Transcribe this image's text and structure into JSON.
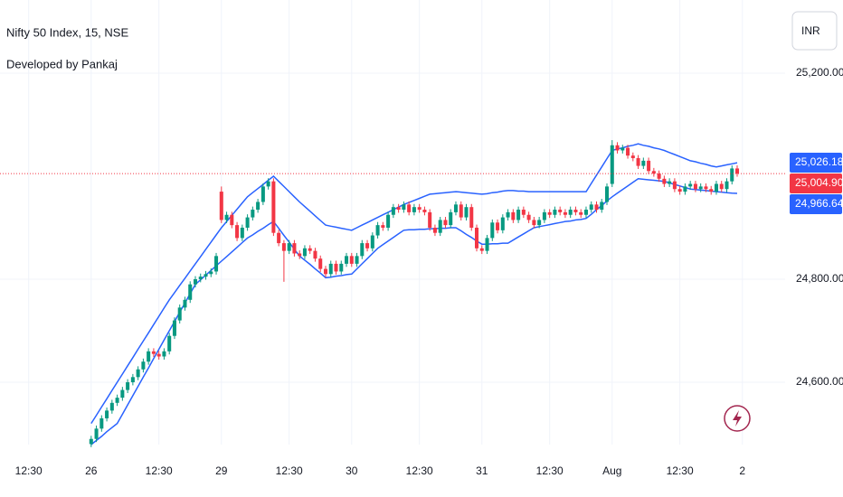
{
  "chart_data": {
    "type": "candlestick",
    "title": "Nifty 50 Index, 15, NSE",
    "subtitle": "Developed by Pankaj",
    "currency": "INR",
    "up_color": "#089981",
    "down_color": "#f23645",
    "xlim": [
      -17.5,
      133.2
    ],
    "ylim": [
      24479,
      25342
    ],
    "xticks": [
      {
        "value": -12,
        "label": "12:30"
      },
      {
        "value": 0,
        "label": "26"
      },
      {
        "value": 13,
        "label": "12:30"
      },
      {
        "value": 25,
        "label": "29"
      },
      {
        "value": 38,
        "label": "12:30"
      },
      {
        "value": 50,
        "label": "30"
      },
      {
        "value": 63,
        "label": "12:30"
      },
      {
        "value": 75,
        "label": "31"
      },
      {
        "value": 88,
        "label": "12:30"
      },
      {
        "value": 100,
        "label": "Aug"
      },
      {
        "value": 113,
        "label": "12:30"
      },
      {
        "value": 125,
        "label": "2"
      }
    ],
    "yticks": [
      {
        "value": 24600,
        "label": "24,600.00"
      },
      {
        "value": 24800,
        "label": "24,800.00"
      },
      {
        "value": 25200,
        "label": "25,200.00"
      }
    ],
    "grid": true,
    "open": [
      24480,
      24490,
      24510,
      24530,
      24545,
      24560,
      24570,
      24585,
      24600,
      24610,
      24625,
      24640,
      24660,
      24655,
      24650,
      24660,
      24690,
      24720,
      24745,
      24760,
      24790,
      24800,
      24805,
      24810,
      24815,
      24970,
      24915,
      24925,
      24905,
      24880,
      24900,
      24920,
      24935,
      24950,
      24980,
      24990,
      24890,
      24870,
      24855,
      24870,
      24850,
      24845,
      24860,
      24855,
      24840,
      24820,
      24810,
      24830,
      24815,
      24830,
      24845,
      24830,
      24845,
      24870,
      24860,
      24885,
      24905,
      24900,
      24925,
      24940,
      24935,
      24945,
      24930,
      24940,
      24935,
      24930,
      24900,
      24890,
      24915,
      24905,
      24930,
      24945,
      24920,
      24940,
      24900,
      24860,
      24855,
      24880,
      24910,
      24895,
      24920,
      24930,
      24915,
      24935,
      24925,
      24915,
      24905,
      24915,
      24930,
      24925,
      24935,
      24930,
      24925,
      24935,
      24930,
      24925,
      24935,
      24945,
      24935,
      24950,
      24985,
      25060,
      25050,
      25055,
      25040,
      25035,
      25020,
      25030,
      25010,
      25005,
      24995,
      24985,
      24990,
      24975,
      24970,
      24980,
      24985,
      24975,
      24980,
      24975,
      24970,
      24985,
      24975,
      24990,
      25015
    ],
    "high": [
      24496,
      24516,
      24536,
      24551,
      24566,
      24576,
      24591,
      24606,
      24616,
      24631,
      24646,
      24666,
      24666,
      24661,
      24666,
      24696,
      24726,
      24751,
      24766,
      24796,
      24806,
      24811,
      24816,
      24821,
      24851,
      24980,
      24931,
      24931,
      24911,
      24906,
      24926,
      24941,
      24956,
      24986,
      24996,
      24996,
      24896,
      24876,
      24876,
      24876,
      24856,
      24866,
      24866,
      24861,
      24846,
      24826,
      24836,
      24836,
      24836,
      24851,
      24851,
      24851,
      24876,
      24876,
      24891,
      24911,
      24911,
      24931,
      24946,
      24946,
      24951,
      24951,
      24946,
      24946,
      24941,
      24936,
      24906,
      24921,
      24921,
      24936,
      24951,
      24951,
      24946,
      24946,
      24906,
      24866,
      24886,
      24916,
      24916,
      24926,
      24936,
      24936,
      24941,
      24941,
      24931,
      24921,
      24921,
      24936,
      24936,
      24941,
      24941,
      24936,
      24941,
      24941,
      24936,
      24941,
      24951,
      24951,
      24956,
      24986,
      25070,
      25066,
      25061,
      25061,
      25046,
      25041,
      25036,
      25036,
      25016,
      25011,
      25001,
      24996,
      24996,
      24981,
      24986,
      24991,
      24991,
      24986,
      24986,
      24981,
      24991,
      24991,
      24996,
      25021,
      25021
    ],
    "low": [
      24474,
      24484,
      24504,
      24524,
      24539,
      24554,
      24564,
      24579,
      24594,
      24604,
      24619,
      24634,
      24649,
      24644,
      24644,
      24654,
      24684,
      24714,
      24739,
      24754,
      24784,
      24794,
      24799,
      24804,
      24809,
      24909,
      24909,
      24899,
      24874,
      24874,
      24894,
      24914,
      24929,
      24944,
      24974,
      24884,
      24864,
      24795,
      24849,
      24844,
      24839,
      24839,
      24849,
      24834,
      24814,
      24804,
      24804,
      24809,
      24809,
      24824,
      24824,
      24824,
      24839,
      24854,
      24854,
      24879,
      24894,
      24894,
      24919,
      24929,
      24929,
      24924,
      24924,
      24929,
      24924,
      24894,
      24884,
      24884,
      24899,
      24899,
      24924,
      24914,
      24914,
      24894,
      24854,
      24849,
      24849,
      24874,
      24889,
      24889,
      24914,
      24909,
      24909,
      24919,
      24909,
      24899,
      24899,
      24909,
      24919,
      24919,
      24924,
      24919,
      24919,
      24924,
      24919,
      24919,
      24929,
      24929,
      24929,
      24944,
      24979,
      25044,
      25044,
      25034,
      25029,
      25014,
      25014,
      25004,
      24999,
      24989,
      24979,
      24979,
      24969,
      24964,
      24964,
      24974,
      24969,
      24969,
      24969,
      24964,
      24964,
      24969,
      24969,
      24984,
      24999
    ],
    "close": [
      24490,
      24510,
      24530,
      24545,
      24560,
      24570,
      24585,
      24600,
      24610,
      24625,
      24640,
      24660,
      24655,
      24650,
      24660,
      24690,
      24720,
      24745,
      24760,
      24790,
      24800,
      24805,
      24810,
      24815,
      24845,
      24915,
      24925,
      24905,
      24880,
      24900,
      24920,
      24935,
      24950,
      24980,
      24990,
      24890,
      24870,
      24855,
      24870,
      24850,
      24845,
      24860,
      24855,
      24840,
      24820,
      24810,
      24830,
      24815,
      24830,
      24845,
      24830,
      24845,
      24870,
      24860,
      24885,
      24905,
      24900,
      24925,
      24940,
      24935,
      24945,
      24930,
      24940,
      24935,
      24930,
      24900,
      24890,
      24915,
      24905,
      24930,
      24945,
      24920,
      24940,
      24900,
      24860,
      24855,
      24880,
      24910,
      24895,
      24920,
      24930,
      24915,
      24935,
      24925,
      24915,
      24905,
      24915,
      24930,
      24925,
      24935,
      24930,
      24925,
      24935,
      24930,
      24925,
      24935,
      24945,
      24935,
      24950,
      24980,
      25060,
      25050,
      25055,
      25040,
      25035,
      25020,
      25030,
      25010,
      25005,
      24995,
      24985,
      24990,
      24975,
      24970,
      24980,
      24985,
      24975,
      24980,
      24975,
      24970,
      24985,
      24975,
      24990,
      25015,
      25004.9
    ],
    "bands": [
      {
        "color": "#2962ff",
        "values": [
          24520,
          24536,
          24552,
          24568,
          24584,
          24600,
          24616,
          24632,
          24648,
          24664,
          24680,
          24696,
          24712,
          24728,
          24744,
          24760,
          24774,
          24788,
          24802,
          24816,
          24830,
          24844,
          24858,
          24872,
          24886,
          24900,
          24912,
          24924,
          24936,
          24948,
          24960,
          24968,
          24976,
          24984,
          24992,
          25000,
          24990,
          24980,
          24970,
          24960,
          24950,
          24941,
          24932,
          24923,
          24914,
          24905,
          24903,
          24901,
          24899,
          24897,
          24895,
          24900,
          24905,
          24910,
          24915,
          24920,
          24925,
          24930,
          24935,
          24940,
          24945,
          24949,
          24953,
          24957,
          24961,
          24965,
          24966,
          24967,
          24968,
          24969,
          24970,
          24969,
          24968,
          24967,
          24966,
          24965,
          24966,
          24968,
          24969,
          24971,
          24972,
          24972,
          24971,
          24971,
          24970,
          24970,
          24970,
          24970,
          24970,
          24970,
          24970,
          24970,
          24970,
          24970,
          24970,
          24970,
          24986,
          25002,
          25018,
          25034,
          25050,
          25053,
          25055,
          25058,
          25060,
          25063,
          25060,
          25058,
          25055,
          25053,
          25050,
          25046,
          25042,
          25038,
          25034,
          25030,
          25028,
          25025,
          25023,
          25020,
          25018,
          25020,
          25022,
          25024,
          25026.18
        ]
      },
      {
        "color": "#2962ff",
        "values": [
          24479,
          24487,
          24495,
          24504,
          24512,
          24520,
          24538,
          24556,
          24574,
          24592,
          24610,
          24628,
          24646,
          24664,
          24682,
          24700,
          24718,
          24736,
          24754,
          24772,
          24790,
          24799,
          24808,
          24817,
          24826,
          24835,
          24844,
          24853,
          24862,
          24871,
          24880,
          24886,
          24893,
          24899,
          24906,
          24912,
          24899,
          24885,
          24872,
          24858,
          24845,
          24837,
          24829,
          24820,
          24812,
          24803,
          24804,
          24806,
          24807,
          24809,
          24810,
          24820,
          24830,
          24840,
          24850,
          24860,
          24867,
          24874,
          24881,
          24888,
          24895,
          24896,
          24896,
          24897,
          24897,
          24898,
          24898,
          24899,
          24899,
          24900,
          24900,
          24894,
          24887,
          24881,
          24874,
          24868,
          24868,
          24869,
          24869,
          24870,
          24870,
          24876,
          24882,
          24888,
          24894,
          24900,
          24902,
          24904,
          24906,
          24908,
          24910,
          24912,
          24913,
          24915,
          24916,
          24918,
          24926,
          24935,
          24943,
          24952,
          24960,
          24967,
          24974,
          24981,
          24988,
          24995,
          24994,
          24993,
          24992,
          24991,
          24990,
          24987,
          24984,
          24981,
          24978,
          24975,
          24974,
          24973,
          24972,
          24971,
          24970,
          24969,
          24968,
          24967,
          24966.64
        ]
      }
    ],
    "price_labels": [
      {
        "value": 25026.18,
        "label": "25,026.18",
        "color": "#2962ff"
      },
      {
        "value": 25004.9,
        "label": "25,004.90",
        "color": "#f23645"
      },
      {
        "value": 24966.64,
        "label": "24,966.64",
        "color": "#2962ff"
      }
    ]
  }
}
